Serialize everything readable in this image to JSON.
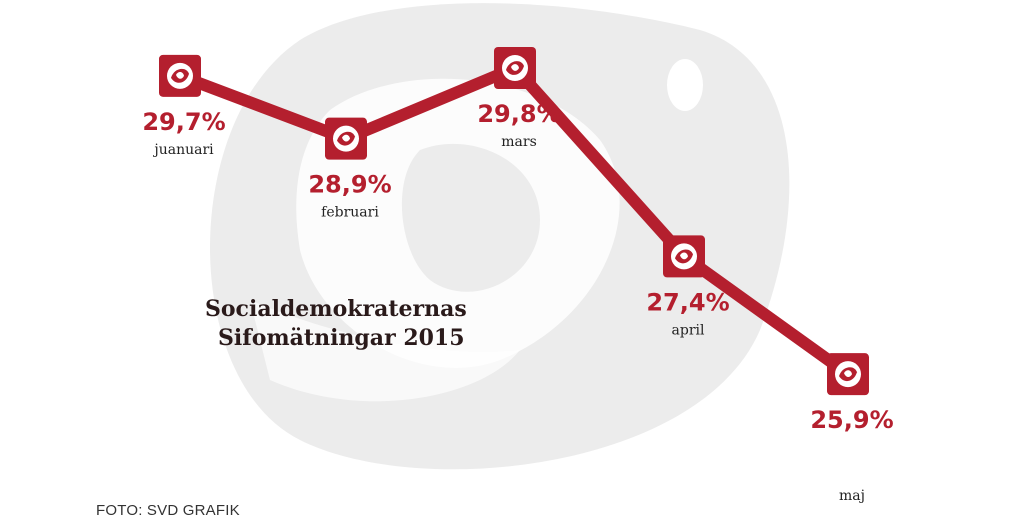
{
  "chart_data": {
    "type": "line",
    "title": [
      "Socialdemokraternas",
      "Sifomätningar 2015"
    ],
    "categories": [
      "juanuari",
      "februari",
      "mars",
      "april",
      "maj"
    ],
    "values": [
      29.7,
      28.9,
      29.8,
      27.4,
      25.9
    ],
    "value_labels": [
      "29,7%",
      "28,9%",
      "29,8%",
      "27,4%",
      "25,9%"
    ],
    "unit": "%",
    "grid": false,
    "legend": "none",
    "colors": {
      "line": "#b41f2e",
      "marker": "#b41f2e",
      "value_text": "#b41f2e",
      "label_text": "#222222",
      "background_logo": "#ececec"
    }
  },
  "credit": "FOTO: SVD GRAFIK"
}
